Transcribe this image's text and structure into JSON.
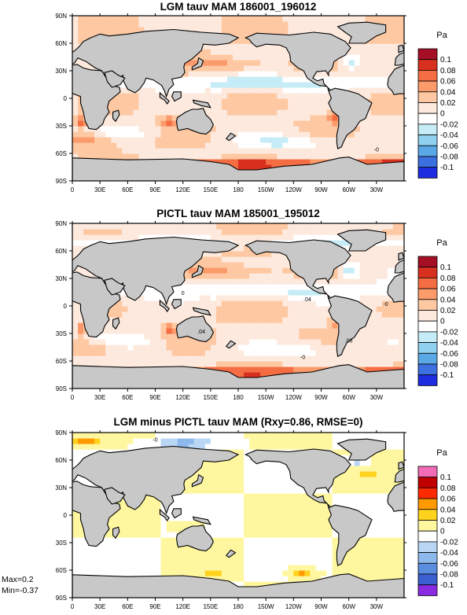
{
  "chart_data": [
    {
      "type": "heatmap",
      "title": "LGM tauv MAM 186001_196012",
      "units": "Pa",
      "x_ticks": [
        "0",
        "30E",
        "60E",
        "90E",
        "120E",
        "150E",
        "180",
        "150W",
        "120W",
        "90W",
        "60W",
        "30W"
      ],
      "y_ticks": [
        "90N",
        "60N",
        "30N",
        "0",
        "30S",
        "60S",
        "90S"
      ],
      "colorbar_levels": [
        "0.1",
        "0.08",
        "0.06",
        "0.04",
        "0.02",
        "0",
        "-0.02",
        "-0.04",
        "-0.06",
        "-0.08",
        "-0.1"
      ],
      "colorbar_colors": [
        "#a50f26",
        "#d7301f",
        "#f46d43",
        "#fb9a6a",
        "#fdc8a2",
        "#fde9dd",
        "#ffffff",
        "#c6ecf7",
        "#8fd1ef",
        "#5aa8e6",
        "#3c6fe0",
        "#1f2de0"
      ],
      "contour_labels": [
        "-0"
      ]
    },
    {
      "type": "heatmap",
      "title": "PICTL tauv MAM 185001_195012",
      "units": "Pa",
      "x_ticks": [
        "0",
        "30E",
        "60E",
        "90E",
        "120E",
        "150E",
        "180",
        "150W",
        "120W",
        "90W",
        "60W",
        "30W"
      ],
      "y_ticks": [
        "90N",
        "60N",
        "30N",
        "0",
        "30S",
        "60S",
        "90S"
      ],
      "colorbar_levels": [
        "0.1",
        "0.08",
        "0.06",
        "0.04",
        "0.02",
        "0",
        "-0.02",
        "-0.04",
        "-0.06",
        "-0.08",
        "-0.1"
      ],
      "colorbar_colors": [
        "#a50f26",
        "#d7301f",
        "#f46d43",
        "#fb9a6a",
        "#fdc8a2",
        "#fde9dd",
        "#ffffff",
        "#c6ecf7",
        "#8fd1ef",
        "#5aa8e6",
        "#3c6fe0",
        "#1f2de0"
      ],
      "contour_labels": [
        "0",
        ".04",
        ".04",
        "-0",
        "-0",
        ".06"
      ]
    },
    {
      "type": "heatmap",
      "title": "LGM minus PICTL tauv MAM (Rxy=0.86, RMSE=0)",
      "units": "Pa",
      "x_ticks": [
        "0",
        "30E",
        "60E",
        "90E",
        "120E",
        "150E",
        "180",
        "150W",
        "120W",
        "90W",
        "60W",
        "30W"
      ],
      "y_ticks": [
        "90N",
        "60N",
        "30N",
        "0",
        "30S",
        "60S",
        "90S"
      ],
      "colorbar_levels": [
        "0.1",
        "0.08",
        "0.06",
        "0.04",
        "0.02",
        "0",
        "-0.02",
        "-0.04",
        "-0.06",
        "-0.08",
        "-0.1"
      ],
      "colorbar_colors": [
        "#f26bb6",
        "#c00000",
        "#ff2a00",
        "#ff9a00",
        "#ffd21e",
        "#fff7a0",
        "#ffffff",
        "#b9d6f5",
        "#8cb8ec",
        "#5a8ce0",
        "#3c5fd2",
        "#8a2be2"
      ],
      "contour_labels": [
        "-0"
      ],
      "max_label": "Max=0.2",
      "min_label": "Min=-0.37"
    }
  ]
}
